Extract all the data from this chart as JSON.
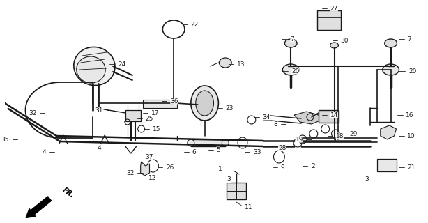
{
  "bg_color": "#ffffff",
  "line_color": "#1a1a1a",
  "figsize": [
    6.14,
    3.2
  ],
  "dpi": 100,
  "xlim": [
    0,
    614
  ],
  "ylim": [
    0,
    320
  ]
}
